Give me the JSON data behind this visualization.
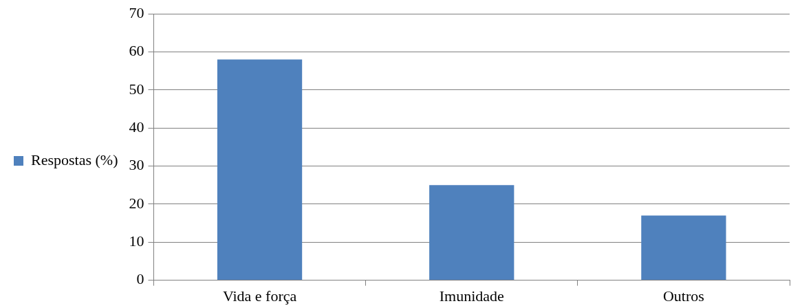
{
  "chart_data": {
    "type": "bar",
    "categories": [
      "Vida e força",
      "Imunidade",
      "Outros"
    ],
    "series": [
      {
        "name": "Respostas (%)",
        "color": "#4f81bd",
        "values": [
          58,
          25,
          17
        ]
      }
    ],
    "ylim": [
      0,
      70
    ],
    "yticks": [
      0,
      10,
      20,
      30,
      40,
      50,
      60,
      70
    ],
    "grid": "y",
    "legend": "left"
  }
}
